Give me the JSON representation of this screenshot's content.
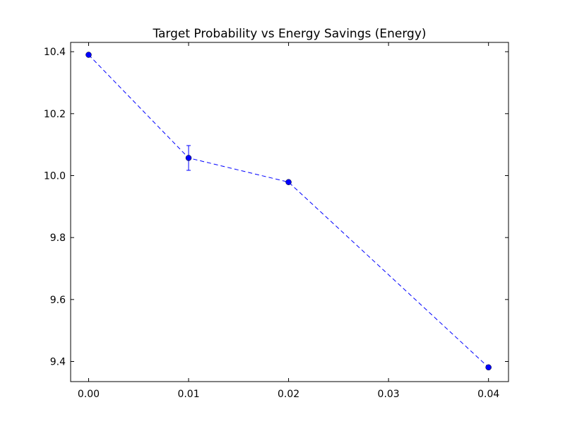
{
  "chart_data": {
    "type": "line",
    "title": "Target Probability vs Energy Savings (Energy)",
    "xlabel": "",
    "ylabel": "",
    "xlim": [
      -0.0018,
      0.042
    ],
    "ylim": [
      9.335,
      10.43
    ],
    "x_ticks": [
      0.0,
      0.01,
      0.02,
      0.03,
      0.04
    ],
    "x_tick_labels": [
      "0.00",
      "0.01",
      "0.02",
      "0.03",
      "0.04"
    ],
    "y_ticks": [
      9.4,
      9.6,
      9.8,
      10.0,
      10.2,
      10.4
    ],
    "y_tick_labels": [
      "9.4",
      "9.6",
      "9.8",
      "10.0",
      "10.2",
      "10.4"
    ],
    "grid": false,
    "series": [
      {
        "name": "Energy",
        "color": "#0000ff",
        "linestyle": "dashed",
        "marker": "circle",
        "x": [
          0.0,
          0.01,
          0.02,
          0.04
        ],
        "y": [
          10.39,
          10.057,
          9.979,
          9.381
        ],
        "yerr": [
          0.0,
          0.04,
          0.0,
          0.0
        ]
      }
    ]
  }
}
